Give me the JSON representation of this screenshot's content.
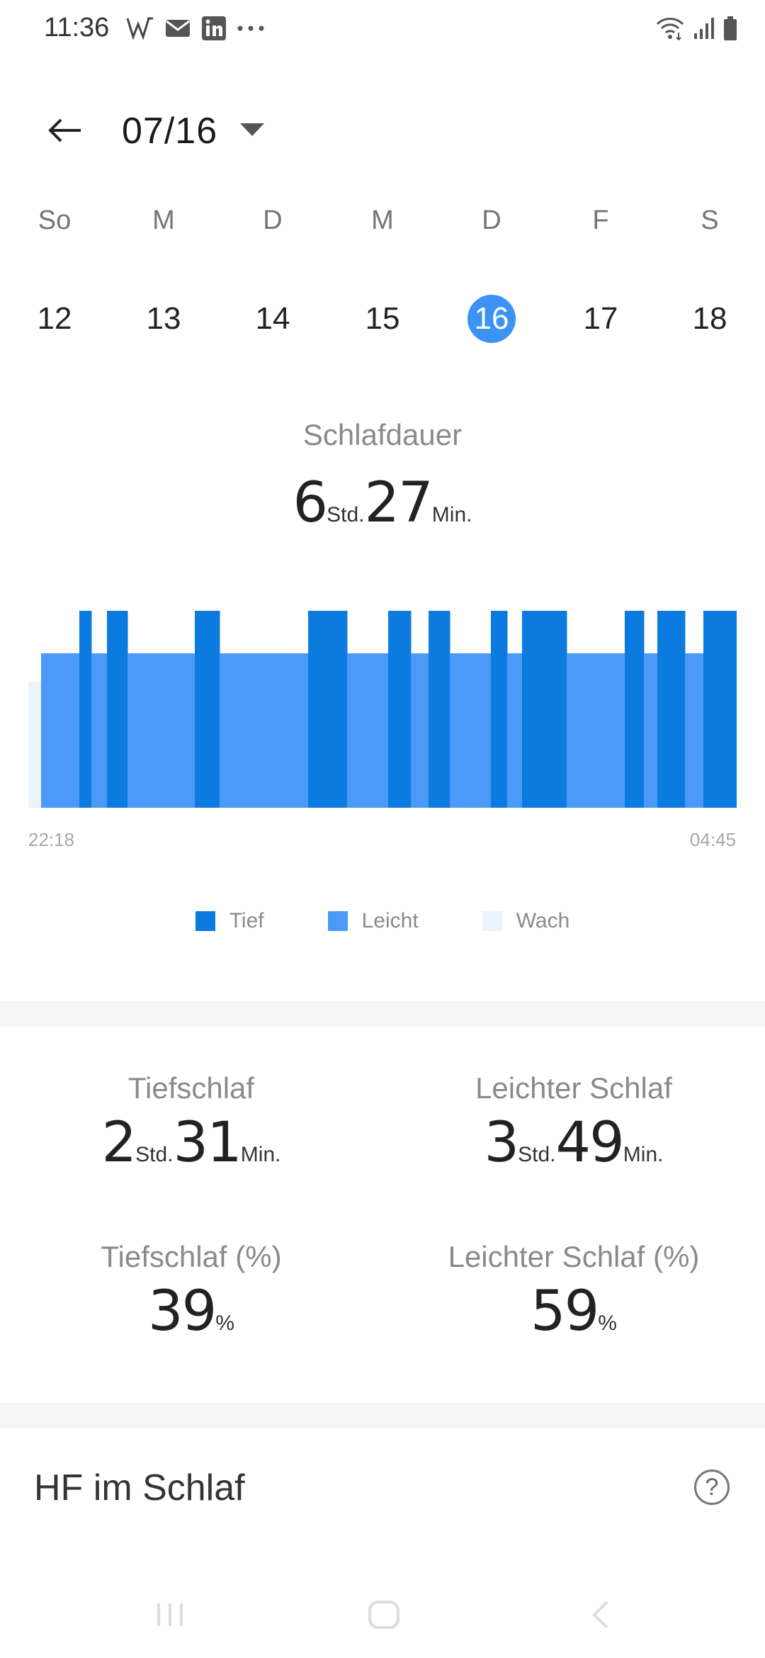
{
  "status_bar": {
    "time": "11:36",
    "left_icons": [
      "w-app-icon",
      "mail-icon",
      "linkedin-icon",
      "more-dots-icon"
    ],
    "right_icons": [
      "wifi-icon",
      "signal-icon",
      "battery-icon"
    ]
  },
  "header": {
    "date": "07/16"
  },
  "week": {
    "weekdays": [
      "So",
      "M",
      "D",
      "M",
      "D",
      "F",
      "S"
    ],
    "days": [
      "12",
      "13",
      "14",
      "15",
      "16",
      "17",
      "18"
    ],
    "selected_index": 4
  },
  "duration": {
    "title": "Schlafdauer",
    "hours": "6",
    "hours_unit": "Std.",
    "minutes": "27",
    "minutes_unit": "Min."
  },
  "chart_data": {
    "type": "area",
    "x_start": "22:18",
    "x_end": "04:45",
    "legend": [
      "Tief",
      "Leicht",
      "Wach"
    ],
    "colors": {
      "Tief": "#0B7BE0",
      "Leicht": "#4C9AF7",
      "Wach": "#EAF3FE"
    },
    "segments": [
      {
        "stage": "Wach",
        "start": 0.0,
        "end": 0.018
      },
      {
        "stage": "Leicht",
        "start": 0.018,
        "end": 0.072
      },
      {
        "stage": "Tief",
        "start": 0.072,
        "end": 0.089
      },
      {
        "stage": "Leicht",
        "start": 0.089,
        "end": 0.111
      },
      {
        "stage": "Tief",
        "start": 0.111,
        "end": 0.14
      },
      {
        "stage": "Leicht",
        "start": 0.14,
        "end": 0.235
      },
      {
        "stage": "Tief",
        "start": 0.235,
        "end": 0.27
      },
      {
        "stage": "Leicht",
        "start": 0.27,
        "end": 0.395
      },
      {
        "stage": "Tief",
        "start": 0.395,
        "end": 0.45
      },
      {
        "stage": "Leicht",
        "start": 0.45,
        "end": 0.508
      },
      {
        "stage": "Tief",
        "start": 0.508,
        "end": 0.54
      },
      {
        "stage": "Leicht",
        "start": 0.54,
        "end": 0.565
      },
      {
        "stage": "Tief",
        "start": 0.565,
        "end": 0.595
      },
      {
        "stage": "Leicht",
        "start": 0.595,
        "end": 0.653
      },
      {
        "stage": "Tief",
        "start": 0.653,
        "end": 0.676
      },
      {
        "stage": "Leicht",
        "start": 0.676,
        "end": 0.697
      },
      {
        "stage": "Tief",
        "start": 0.697,
        "end": 0.76
      },
      {
        "stage": "Leicht",
        "start": 0.76,
        "end": 0.842
      },
      {
        "stage": "Tief",
        "start": 0.842,
        "end": 0.869
      },
      {
        "stage": "Leicht",
        "start": 0.869,
        "end": 0.888
      },
      {
        "stage": "Tief",
        "start": 0.888,
        "end": 0.927
      },
      {
        "stage": "Leicht",
        "start": 0.927,
        "end": 0.953
      },
      {
        "stage": "Tief",
        "start": 0.953,
        "end": 1.0
      }
    ]
  },
  "stats": {
    "deep": {
      "label": "Tiefschlaf",
      "hours": "2",
      "hours_unit": "Std.",
      "minutes": "31",
      "minutes_unit": "Min."
    },
    "light": {
      "label": "Leichter Schlaf",
      "hours": "3",
      "hours_unit": "Std.",
      "minutes": "49",
      "minutes_unit": "Min."
    },
    "deep_pct": {
      "label": "Tiefschlaf (%)",
      "value": "39",
      "unit": "%"
    },
    "light_pct": {
      "label": "Leichter Schlaf (%)",
      "value": "59",
      "unit": "%"
    }
  },
  "hr_section": {
    "title": "HF im Schlaf",
    "help_icon": "?"
  },
  "nav_bar": {
    "buttons": [
      "recents-icon",
      "home-icon",
      "back-nav-icon"
    ]
  }
}
